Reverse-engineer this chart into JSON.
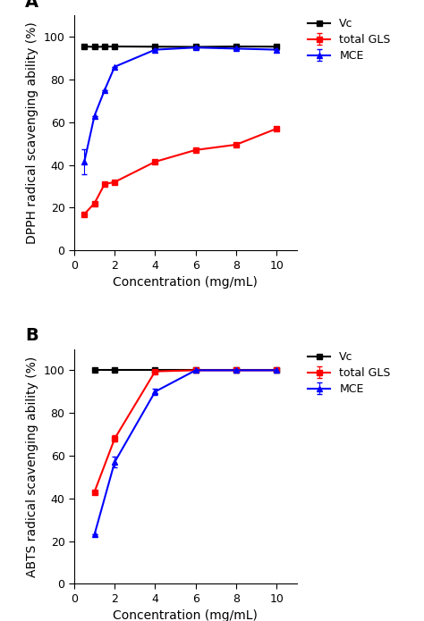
{
  "panel_A": {
    "title": "A",
    "ylabel": "DPPH radical scavenging ability (%)",
    "xlabel": "Concentration (mg/mL)",
    "xlim": [
      0,
      11
    ],
    "ylim": [
      0,
      110
    ],
    "xticks": [
      0,
      2,
      4,
      6,
      8,
      10
    ],
    "yticks": [
      0,
      20,
      40,
      60,
      80,
      100
    ],
    "Vc": {
      "x": [
        0.5,
        1.0,
        1.5,
        2.0,
        4.0,
        6.0,
        8.0,
        10.0
      ],
      "y": [
        95.5,
        95.3,
        95.4,
        95.5,
        95.4,
        95.3,
        95.5,
        95.4
      ],
      "color": "#000000",
      "marker": "s",
      "label": "Vc"
    },
    "total_GLS": {
      "x": [
        0.5,
        1.0,
        1.5,
        2.0,
        4.0,
        6.0,
        8.0,
        10.0
      ],
      "y": [
        17.0,
        22.0,
        31.0,
        32.0,
        41.5,
        47.0,
        49.5,
        57.0
      ],
      "color": "#FF0000",
      "marker": "s",
      "label": "total GLS"
    },
    "MCE": {
      "x": [
        0.5,
        1.0,
        1.5,
        2.0,
        4.0,
        6.0,
        8.0,
        10.0
      ],
      "y": [
        41.5,
        63.0,
        75.0,
        86.0,
        94.0,
        95.0,
        94.5,
        94.0
      ],
      "yerr": [
        6.0,
        0.0,
        0.0,
        0.0,
        0.0,
        0.0,
        0.0,
        0.0
      ],
      "color": "#0000FF",
      "marker": "^",
      "label": "MCE"
    }
  },
  "panel_B": {
    "title": "B",
    "ylabel": "ABTS radical scavenging ability (%)",
    "xlabel": "Concentration (mg/mL)",
    "xlim": [
      0,
      11
    ],
    "ylim": [
      0,
      110
    ],
    "xticks": [
      0,
      2,
      4,
      6,
      8,
      10
    ],
    "yticks": [
      0,
      20,
      40,
      60,
      80,
      100
    ],
    "Vc": {
      "x": [
        1.0,
        2.0,
        4.0,
        6.0,
        8.0,
        10.0
      ],
      "y": [
        100.0,
        100.0,
        100.0,
        100.0,
        100.0,
        100.0
      ],
      "color": "#000000",
      "marker": "s",
      "label": "Vc"
    },
    "total_GLS": {
      "x": [
        1.0,
        2.0,
        4.0,
        6.0,
        8.0,
        10.0
      ],
      "y": [
        43.0,
        68.0,
        99.5,
        100.0,
        100.0,
        100.0
      ],
      "yerr": [
        0.0,
        1.5,
        0.5,
        0.0,
        0.0,
        0.0
      ],
      "color": "#FF0000",
      "marker": "s",
      "label": "total GLS"
    },
    "MCE": {
      "x": [
        1.0,
        2.0,
        4.0,
        6.0,
        8.0,
        10.0
      ],
      "y": [
        23.0,
        57.0,
        90.0,
        100.0,
        100.0,
        100.0
      ],
      "yerr": [
        0.0,
        2.5,
        1.5,
        0.0,
        0.0,
        0.0
      ],
      "color": "#0000FF",
      "marker": "^",
      "label": "MCE"
    }
  },
  "legend_fontsize": 9,
  "tick_fontsize": 9,
  "label_fontsize": 10,
  "title_fontsize": 14,
  "linewidth": 1.5,
  "markersize": 4
}
